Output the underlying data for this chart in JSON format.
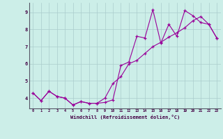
{
  "xlabel": "Windchill (Refroidissement éolien,°C)",
  "background_color": "#cceee8",
  "grid_color": "#aacccc",
  "line_color": "#990099",
  "xlim_min": -0.5,
  "xlim_max": 23.5,
  "ylim_min": 3.4,
  "ylim_max": 9.55,
  "xticks": [
    0,
    1,
    2,
    3,
    4,
    5,
    6,
    7,
    8,
    9,
    10,
    11,
    12,
    13,
    14,
    15,
    16,
    17,
    18,
    19,
    20,
    21,
    22,
    23
  ],
  "yticks": [
    4,
    5,
    6,
    7,
    8,
    9
  ],
  "hours": [
    0,
    1,
    2,
    3,
    4,
    5,
    6,
    7,
    8,
    9,
    10,
    11,
    12,
    13,
    14,
    15,
    16,
    17,
    18,
    19,
    20,
    21,
    22,
    23
  ],
  "line1": [
    4.3,
    3.85,
    4.4,
    4.1,
    4.0,
    3.6,
    3.8,
    3.7,
    3.7,
    3.75,
    3.9,
    5.9,
    6.1,
    7.6,
    7.5,
    9.15,
    7.2,
    8.3,
    7.6,
    9.1,
    8.8,
    8.4,
    8.3,
    7.5
  ],
  "line2": [
    4.3,
    3.85,
    4.4,
    4.1,
    4.0,
    3.6,
    3.8,
    3.7,
    3.7,
    4.0,
    4.85,
    5.25,
    6.0,
    6.2,
    6.6,
    7.0,
    7.25,
    7.55,
    7.8,
    8.1,
    8.5,
    8.75,
    8.3,
    7.5
  ]
}
